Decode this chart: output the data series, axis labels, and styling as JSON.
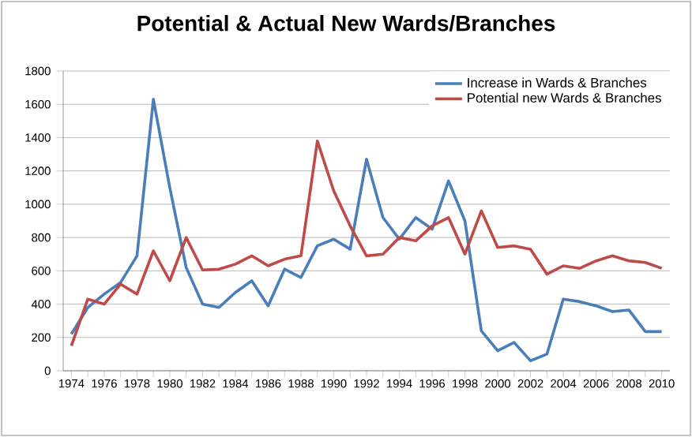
{
  "chart_data": {
    "type": "line",
    "title": "Potential & Actual New Wards/Branches",
    "categories": [
      "1974",
      null,
      "1976",
      null,
      "1978",
      null,
      "1980",
      null,
      "1982",
      null,
      "1984",
      null,
      "1986",
      null,
      "1988",
      null,
      "1990",
      null,
      "1992",
      null,
      "1994",
      null,
      "1996",
      null,
      "1998",
      null,
      "2000",
      null,
      "2002",
      null,
      "2004",
      null,
      "2006",
      null,
      "2008",
      null,
      "2010"
    ],
    "series": [
      {
        "name": "Increase in Wards & Branches",
        "color": "#4a7ebb",
        "values": [
          220,
          380,
          460,
          530,
          690,
          1630,
          1100,
          620,
          400,
          380,
          470,
          540,
          390,
          610,
          560,
          750,
          790,
          730,
          1270,
          920,
          790,
          920,
          850,
          1140,
          900,
          240,
          120,
          170,
          60,
          100,
          430,
          415,
          390,
          355,
          365,
          235,
          235
        ]
      },
      {
        "name": "Potential new Wards & Branches",
        "color": "#be4b48",
        "values": [
          150,
          430,
          400,
          520,
          460,
          720,
          540,
          800,
          605,
          610,
          640,
          690,
          630,
          670,
          690,
          1380,
          1080,
          870,
          690,
          700,
          800,
          780,
          870,
          920,
          700,
          960,
          740,
          750,
          730,
          580,
          630,
          615,
          660,
          690,
          660,
          650,
          615
        ]
      }
    ],
    "ylim": [
      0,
      1800
    ],
    "yticks": [
      0,
      200,
      400,
      600,
      800,
      1000,
      1200,
      1400,
      1600,
      1800
    ],
    "grid": "y",
    "legend": "top right",
    "marker": "none",
    "line_style": "solid"
  }
}
